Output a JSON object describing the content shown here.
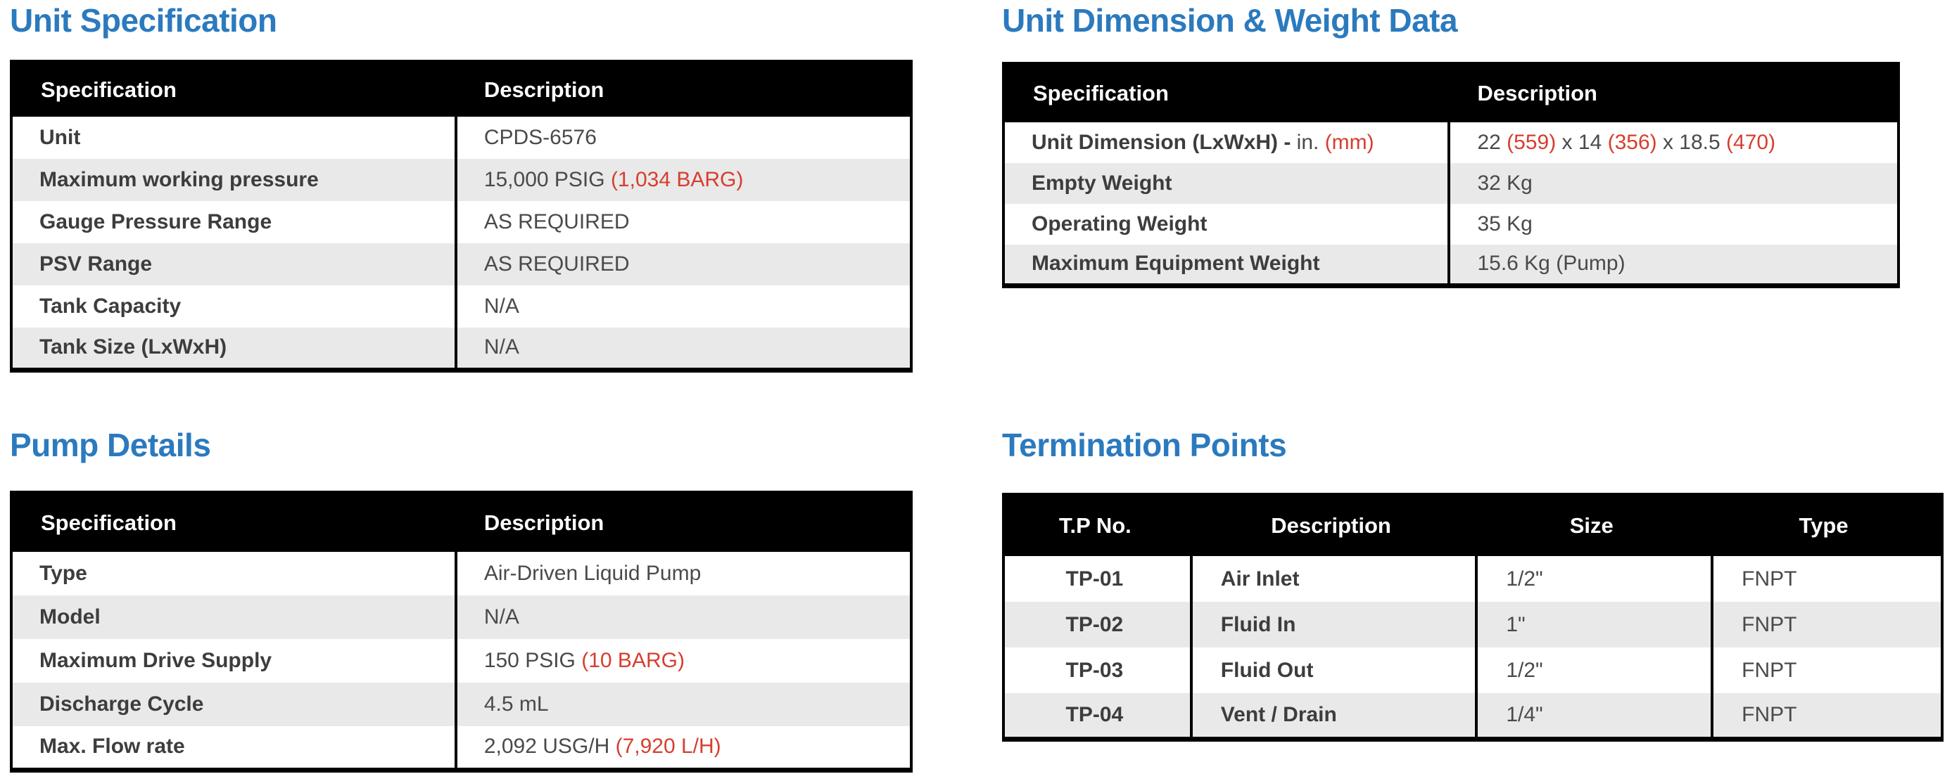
{
  "colors": {
    "heading_blue": "#2b7abe",
    "accent_red": "#d63e2f",
    "label_dark": "#3d3d3d",
    "value_gray": "#4a4a4a",
    "stripe_gray": "#e9e9e9",
    "header_bg": "#000000",
    "header_text": "#ffffff"
  },
  "sections": {
    "unit_spec": {
      "title": "Unit Specification",
      "columns": [
        "Specification",
        "Description"
      ],
      "rows": [
        [
          [
            {
              "t": "Unit",
              "b": true
            }
          ],
          [
            {
              "t": "CPDS-6576"
            }
          ]
        ],
        [
          [
            {
              "t": "Maximum working pressure",
              "b": true
            }
          ],
          [
            {
              "t": "15,000 PSIG "
            },
            {
              "t": "(1,034 BARG)",
              "red": true
            }
          ]
        ],
        [
          [
            {
              "t": "Gauge Pressure Range",
              "b": true
            }
          ],
          [
            {
              "t": "AS REQUIRED"
            }
          ]
        ],
        [
          [
            {
              "t": "PSV Range",
              "b": true
            }
          ],
          [
            {
              "t": "AS REQUIRED"
            }
          ]
        ],
        [
          [
            {
              "t": "Tank Capacity",
              "b": true
            }
          ],
          [
            {
              "t": "N/A"
            }
          ]
        ],
        [
          [
            {
              "t": "Tank Size (LxWxH)",
              "b": true
            }
          ],
          [
            {
              "t": "N/A"
            }
          ]
        ]
      ]
    },
    "unit_dim": {
      "title": "Unit Dimension & Weight Data",
      "columns": [
        "Specification",
        "Description"
      ],
      "rows": [
        [
          [
            {
              "t": "Unit Dimension (LxWxH) - ",
              "b": true
            },
            {
              "t": "in. "
            },
            {
              "t": "(mm)",
              "red": true
            }
          ],
          [
            {
              "t": "22 "
            },
            {
              "t": "(559)",
              "red": true
            },
            {
              "t": " x 14 "
            },
            {
              "t": "(356)",
              "red": true
            },
            {
              "t": " x 18.5 "
            },
            {
              "t": "(470)",
              "red": true
            }
          ]
        ],
        [
          [
            {
              "t": "Empty Weight",
              "b": true
            }
          ],
          [
            {
              "t": "32 Kg"
            }
          ]
        ],
        [
          [
            {
              "t": "Operating Weight",
              "b": true
            }
          ],
          [
            {
              "t": "35 Kg"
            }
          ]
        ],
        [
          [
            {
              "t": "Maximum Equipment Weight",
              "b": true
            }
          ],
          [
            {
              "t": "15.6 Kg (Pump)"
            }
          ]
        ]
      ]
    },
    "pump": {
      "title": "Pump Details",
      "columns": [
        "Specification",
        "Description"
      ],
      "rows": [
        [
          [
            {
              "t": "Type",
              "b": true
            }
          ],
          [
            {
              "t": "Air-Driven Liquid Pump"
            }
          ]
        ],
        [
          [
            {
              "t": "Model",
              "b": true
            }
          ],
          [
            {
              "t": "N/A"
            }
          ]
        ],
        [
          [
            {
              "t": "Maximum Drive Supply",
              "b": true
            }
          ],
          [
            {
              "t": "150 PSIG "
            },
            {
              "t": "(10 BARG)",
              "red": true
            }
          ]
        ],
        [
          [
            {
              "t": "Discharge Cycle",
              "b": true
            }
          ],
          [
            {
              "t": "4.5 mL"
            }
          ]
        ],
        [
          [
            {
              "t": "Max. Flow rate",
              "b": true
            }
          ],
          [
            {
              "t": "2,092 USG/H "
            },
            {
              "t": "(7,920 L/H)",
              "red": true
            }
          ]
        ]
      ]
    },
    "termination": {
      "title": "Termination Points",
      "columns": [
        "T.P No.",
        "Description",
        "Size",
        "Type"
      ],
      "rows": [
        [
          [
            {
              "t": "TP-01",
              "b": true
            }
          ],
          [
            {
              "t": "Air Inlet",
              "b": true
            }
          ],
          [
            {
              "t": "1/2\""
            }
          ],
          [
            {
              "t": "FNPT"
            }
          ]
        ],
        [
          [
            {
              "t": "TP-02",
              "b": true
            }
          ],
          [
            {
              "t": "Fluid In",
              "b": true
            }
          ],
          [
            {
              "t": "1\""
            }
          ],
          [
            {
              "t": "FNPT"
            }
          ]
        ],
        [
          [
            {
              "t": "TP-03",
              "b": true
            }
          ],
          [
            {
              "t": "Fluid Out",
              "b": true
            }
          ],
          [
            {
              "t": "1/2\""
            }
          ],
          [
            {
              "t": "FNPT"
            }
          ]
        ],
        [
          [
            {
              "t": "TP-04",
              "b": true
            }
          ],
          [
            {
              "t": "Vent / Drain",
              "b": true
            }
          ],
          [
            {
              "t": "1/4\""
            }
          ],
          [
            {
              "t": "FNPT"
            }
          ]
        ]
      ]
    }
  }
}
